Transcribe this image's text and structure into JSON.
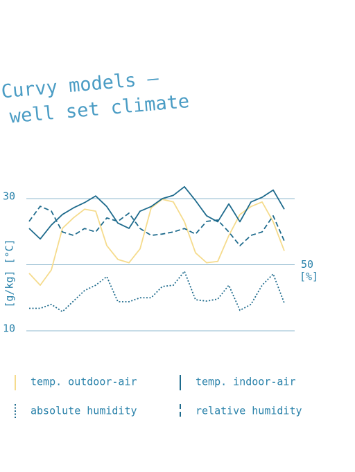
{
  "chart_data": {
    "type": "line",
    "title": "Curvy models –",
    "subtitle": "well set climate",
    "y_label": "[g/kg] [°C]",
    "y2_label": "[%]",
    "ylim": [
      10,
      30
    ],
    "yticks": [
      10,
      30
    ],
    "y2lim": [
      25,
      75
    ],
    "y2ticks": [
      50
    ],
    "grid": true,
    "series": [
      {
        "name": "temp. outdoor-air",
        "color": "#f5db8c",
        "dash": "solid",
        "values": [
          18.7,
          16.9,
          19.2,
          25.5,
          27.1,
          28.4,
          28.1,
          22.9,
          20.8,
          20.3,
          22.4,
          28.6,
          29.9,
          29.5,
          26.5,
          21.8,
          20.3,
          20.5,
          24.4,
          27.6,
          28.8,
          29.5,
          26.5,
          22.1
        ]
      },
      {
        "name": "temp. indoor-air",
        "color": "#1d6a8c",
        "dash": "solid",
        "values": [
          25.5,
          23.9,
          26.0,
          27.6,
          28.6,
          29.4,
          30.4,
          28.8,
          26.3,
          25.5,
          28.1,
          28.8,
          30.0,
          30.5,
          31.8,
          29.7,
          27.4,
          26.5,
          29.2,
          26.5,
          29.5,
          30.2,
          31.3,
          28.4
        ]
      },
      {
        "name": "absolute humidity",
        "color": "#1d6a8c",
        "dash": "dotted",
        "values": [
          13.4,
          13.4,
          14.0,
          12.9,
          14.5,
          16.1,
          16.9,
          18.2,
          14.4,
          14.4,
          15.0,
          15.0,
          16.7,
          16.9,
          19.0,
          14.7,
          14.5,
          14.8,
          16.9,
          13.1,
          14.0,
          16.9,
          18.6,
          14.2
        ]
      },
      {
        "name": "relative humidity",
        "color": "#1d6a8c",
        "dash": "dashed",
        "axis": "y2",
        "values": [
          66.4,
          72.1,
          70.3,
          62.4,
          61.1,
          63.7,
          62.4,
          67.7,
          66.4,
          69.5,
          63.7,
          61.1,
          61.6,
          62.4,
          63.7,
          61.6,
          66.4,
          66.9,
          62.4,
          57.2,
          61.1,
          62.4,
          68.5,
          59.0
        ]
      }
    ]
  }
}
